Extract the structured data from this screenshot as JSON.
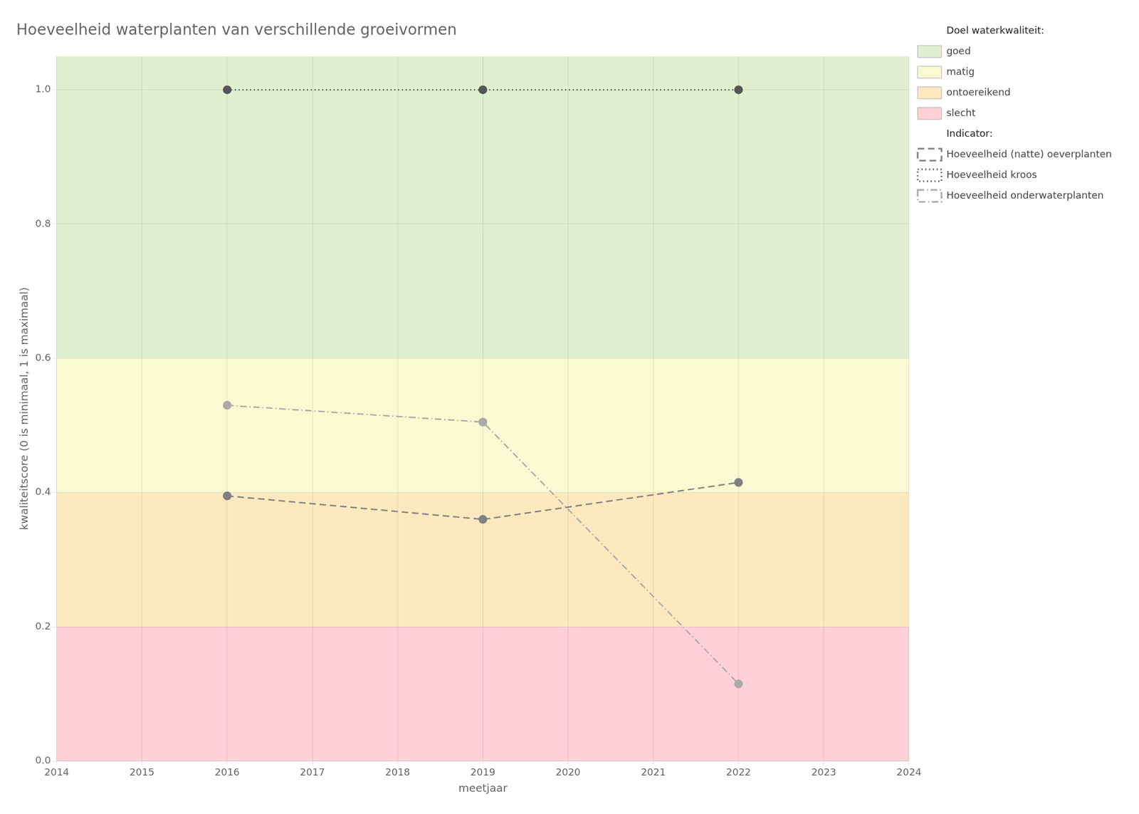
{
  "chart_data": {
    "type": "line",
    "title": "Hoeveelheid waterplanten van verschillende groeivormen",
    "x_label": "meetjaar",
    "y_label": "kwaliteitscore (0 is minimaal, 1 is maximaal)",
    "xlim": [
      2014,
      2024
    ],
    "xticks": [
      2014,
      2015,
      2016,
      2017,
      2018,
      2019,
      2020,
      2021,
      2022,
      2023,
      2024
    ],
    "ylim": [
      0.0,
      1.05
    ],
    "yticks": [
      {
        "value": 0.0,
        "label": "0.0"
      },
      0.2,
      0.4,
      0.6,
      0.8,
      {
        "value": 1.0,
        "label": "1.0"
      }
    ],
    "grid": true,
    "legend": "right",
    "bands_title": "Doel waterkwaliteit:",
    "bands": [
      {
        "name": "goed",
        "color": "#dff0d0",
        "range": [
          0.6,
          1.05
        ]
      },
      {
        "name": "matig",
        "color": "#fafad2",
        "range": [
          0.4,
          0.6
        ]
      },
      {
        "name": "ontoereikend",
        "color": "#fde8c0",
        "range": [
          0.2,
          0.4
        ]
      },
      {
        "name": "slecht",
        "color": "#ffd0d8",
        "range": [
          0.0,
          0.2
        ]
      }
    ],
    "series_title": "Indicator:",
    "series": [
      {
        "name": "Hoeveelheid (natte) oeverplanten",
        "color": "#808080",
        "line_style": "dashed",
        "marker": "circle",
        "x": [
          2016,
          2019,
          2022
        ],
        "values": [
          0.395,
          0.36,
          0.415
        ]
      },
      {
        "name": "Hoeveelheid kroos",
        "color": "#555555",
        "line_style": "dotted",
        "marker": "circle",
        "x": [
          2016,
          2019,
          2022
        ],
        "values": [
          1.0,
          1.0,
          1.0
        ]
      },
      {
        "name": "Hoeveelheid onderwaterplanten",
        "color": "#aaaaaa",
        "line_style": "dashdot",
        "marker": "circle",
        "x": [
          2016,
          2019,
          2022
        ],
        "values": [
          0.53,
          0.505,
          0.115
        ]
      }
    ]
  }
}
